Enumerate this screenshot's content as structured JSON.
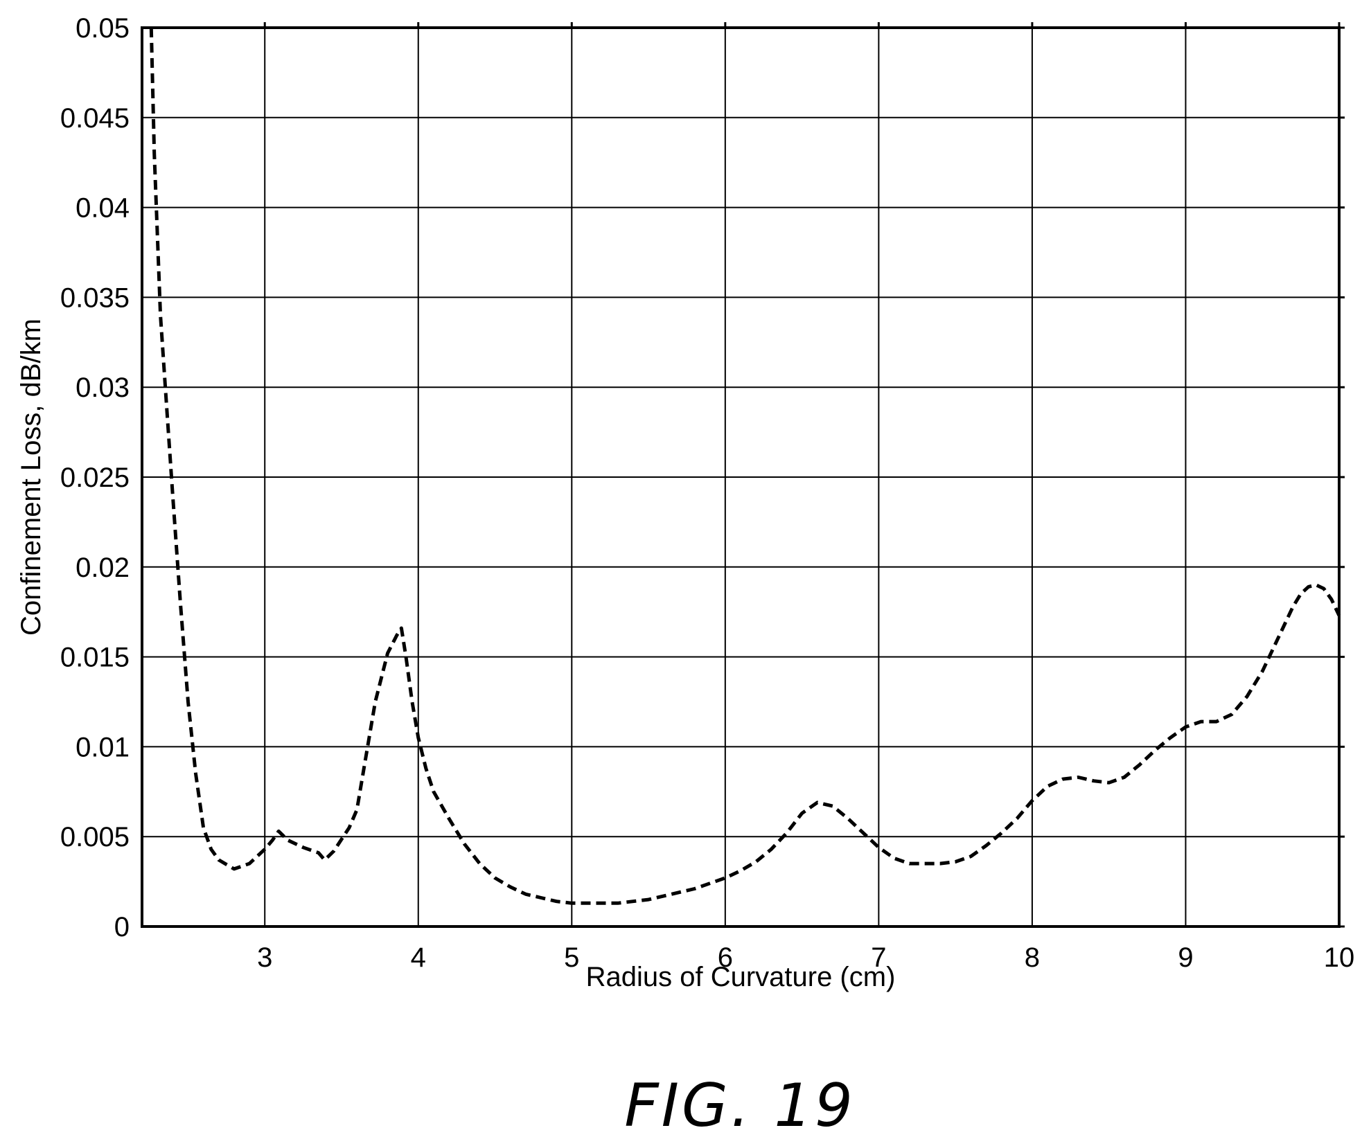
{
  "chart_data": {
    "type": "line",
    "title": "",
    "xlabel": "Radius of Curvature (cm)",
    "ylabel": "Confinement Loss, dB/km",
    "xlim": [
      2.2,
      10
    ],
    "ylim": [
      0,
      0.05
    ],
    "x_ticks": [
      3,
      4,
      5,
      6,
      7,
      8,
      9,
      10
    ],
    "x_tick_labels": [
      "3",
      "4",
      "5",
      "6",
      "7",
      "8",
      "9",
      "10"
    ],
    "y_ticks": [
      0,
      0.005,
      0.01,
      0.015,
      0.02,
      0.025,
      0.03,
      0.035,
      0.04,
      0.045,
      0.05
    ],
    "y_tick_labels": [
      "0",
      "0.005",
      "0.01",
      "0.015",
      "0.02",
      "0.025",
      "0.03",
      "0.035",
      "0.04",
      "0.045",
      "0.05"
    ],
    "grid": true,
    "line_style": "dashed",
    "line_color": "#000000",
    "series": [
      {
        "x": [
          2.26,
          2.28,
          2.32,
          2.36,
          2.4,
          2.45,
          2.5,
          2.55,
          2.6,
          2.65,
          2.7,
          2.8,
          2.9,
          3.0,
          3.05,
          3.09,
          3.15,
          3.25,
          3.35,
          3.39,
          3.45,
          3.55,
          3.6,
          3.65,
          3.72,
          3.8,
          3.86,
          3.89,
          3.92,
          3.96,
          4.0,
          4.05,
          4.1,
          4.2,
          4.3,
          4.4,
          4.5,
          4.6,
          4.7,
          4.8,
          4.9,
          5.0,
          5.1,
          5.2,
          5.3,
          5.4,
          5.5,
          5.6,
          5.7,
          5.8,
          5.9,
          6.0,
          6.1,
          6.2,
          6.3,
          6.4,
          6.5,
          6.6,
          6.7,
          6.8,
          6.9,
          7.0,
          7.1,
          7.2,
          7.3,
          7.4,
          7.5,
          7.6,
          7.7,
          7.8,
          7.9,
          8.0,
          8.1,
          8.2,
          8.3,
          8.4,
          8.5,
          8.6,
          8.7,
          8.8,
          8.9,
          9.0,
          9.1,
          9.2,
          9.3,
          9.4,
          9.5,
          9.6,
          9.7,
          9.75,
          9.8,
          9.85,
          9.9,
          9.95,
          10.0
        ],
        "y": [
          0.05,
          0.043,
          0.034,
          0.029,
          0.024,
          0.018,
          0.0125,
          0.0085,
          0.0055,
          0.0043,
          0.0037,
          0.0032,
          0.0035,
          0.0043,
          0.0048,
          0.0053,
          0.0048,
          0.0044,
          0.0041,
          0.0037,
          0.0042,
          0.0055,
          0.0065,
          0.009,
          0.0125,
          0.0152,
          0.0162,
          0.0166,
          0.015,
          0.0125,
          0.0105,
          0.0088,
          0.0075,
          0.006,
          0.0046,
          0.0035,
          0.0027,
          0.0022,
          0.0018,
          0.0016,
          0.0014,
          0.0013,
          0.0013,
          0.0013,
          0.0013,
          0.0014,
          0.0015,
          0.0017,
          0.0019,
          0.0021,
          0.0024,
          0.0027,
          0.0031,
          0.0036,
          0.0043,
          0.0052,
          0.0063,
          0.0069,
          0.0067,
          0.006,
          0.0052,
          0.0044,
          0.0038,
          0.0035,
          0.0035,
          0.0035,
          0.0036,
          0.0039,
          0.0045,
          0.0052,
          0.006,
          0.007,
          0.0078,
          0.0082,
          0.0083,
          0.0081,
          0.008,
          0.0083,
          0.009,
          0.0098,
          0.0105,
          0.0111,
          0.0114,
          0.0114,
          0.0118,
          0.0128,
          0.0142,
          0.016,
          0.0178,
          0.0185,
          0.0189,
          0.019,
          0.0188,
          0.0182,
          0.0173
        ]
      }
    ]
  },
  "caption": "FIG. 19"
}
